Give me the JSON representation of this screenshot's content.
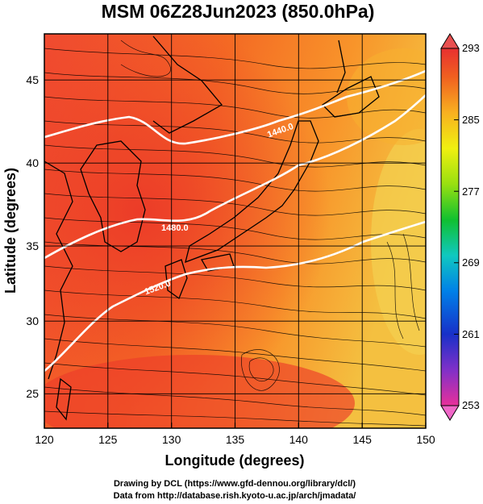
{
  "title": "MSM 06Z28Jun2023 (850.0hPa)",
  "xlabel": "Longitude (degrees)",
  "ylabel": "Latitude  (degrees)",
  "credits": [
    "Drawing by DCL (https://www.gfd-dennou.org/library/dcl/)",
    "Data from http://database.rish.kyoto-u.ac.jp/arch/jmadata/"
  ],
  "map": {
    "lon_range": [
      120,
      150
    ],
    "lat_range": [
      22.4,
      47.6
    ],
    "lon_ticks": [
      "120",
      "125",
      "130",
      "135",
      "140",
      "145",
      "150"
    ],
    "lat_ticks": [
      "25",
      "30",
      "35",
      "40",
      "45"
    ],
    "field": "temperature (K) with wind streamlines",
    "contours": [
      {
        "label": "1440.0",
        "lon": 138.0,
        "lat": 42.5
      },
      {
        "label": "1480.0",
        "lon": 128.8,
        "lat": 35.8
      },
      {
        "label": "1520.0",
        "lon": 127.8,
        "lat": 32.4
      }
    ]
  },
  "colorbar": {
    "min": 253,
    "max": 293,
    "ticks": [
      "293",
      "285",
      "277",
      "269",
      "261",
      "253"
    ],
    "colors": [
      "#e8309a",
      "#8030c8",
      "#1830c8",
      "#0080e8",
      "#10c8c0",
      "#10c030",
      "#98e010",
      "#f0f010",
      "#f8b020",
      "#f06020",
      "#e83030"
    ]
  }
}
